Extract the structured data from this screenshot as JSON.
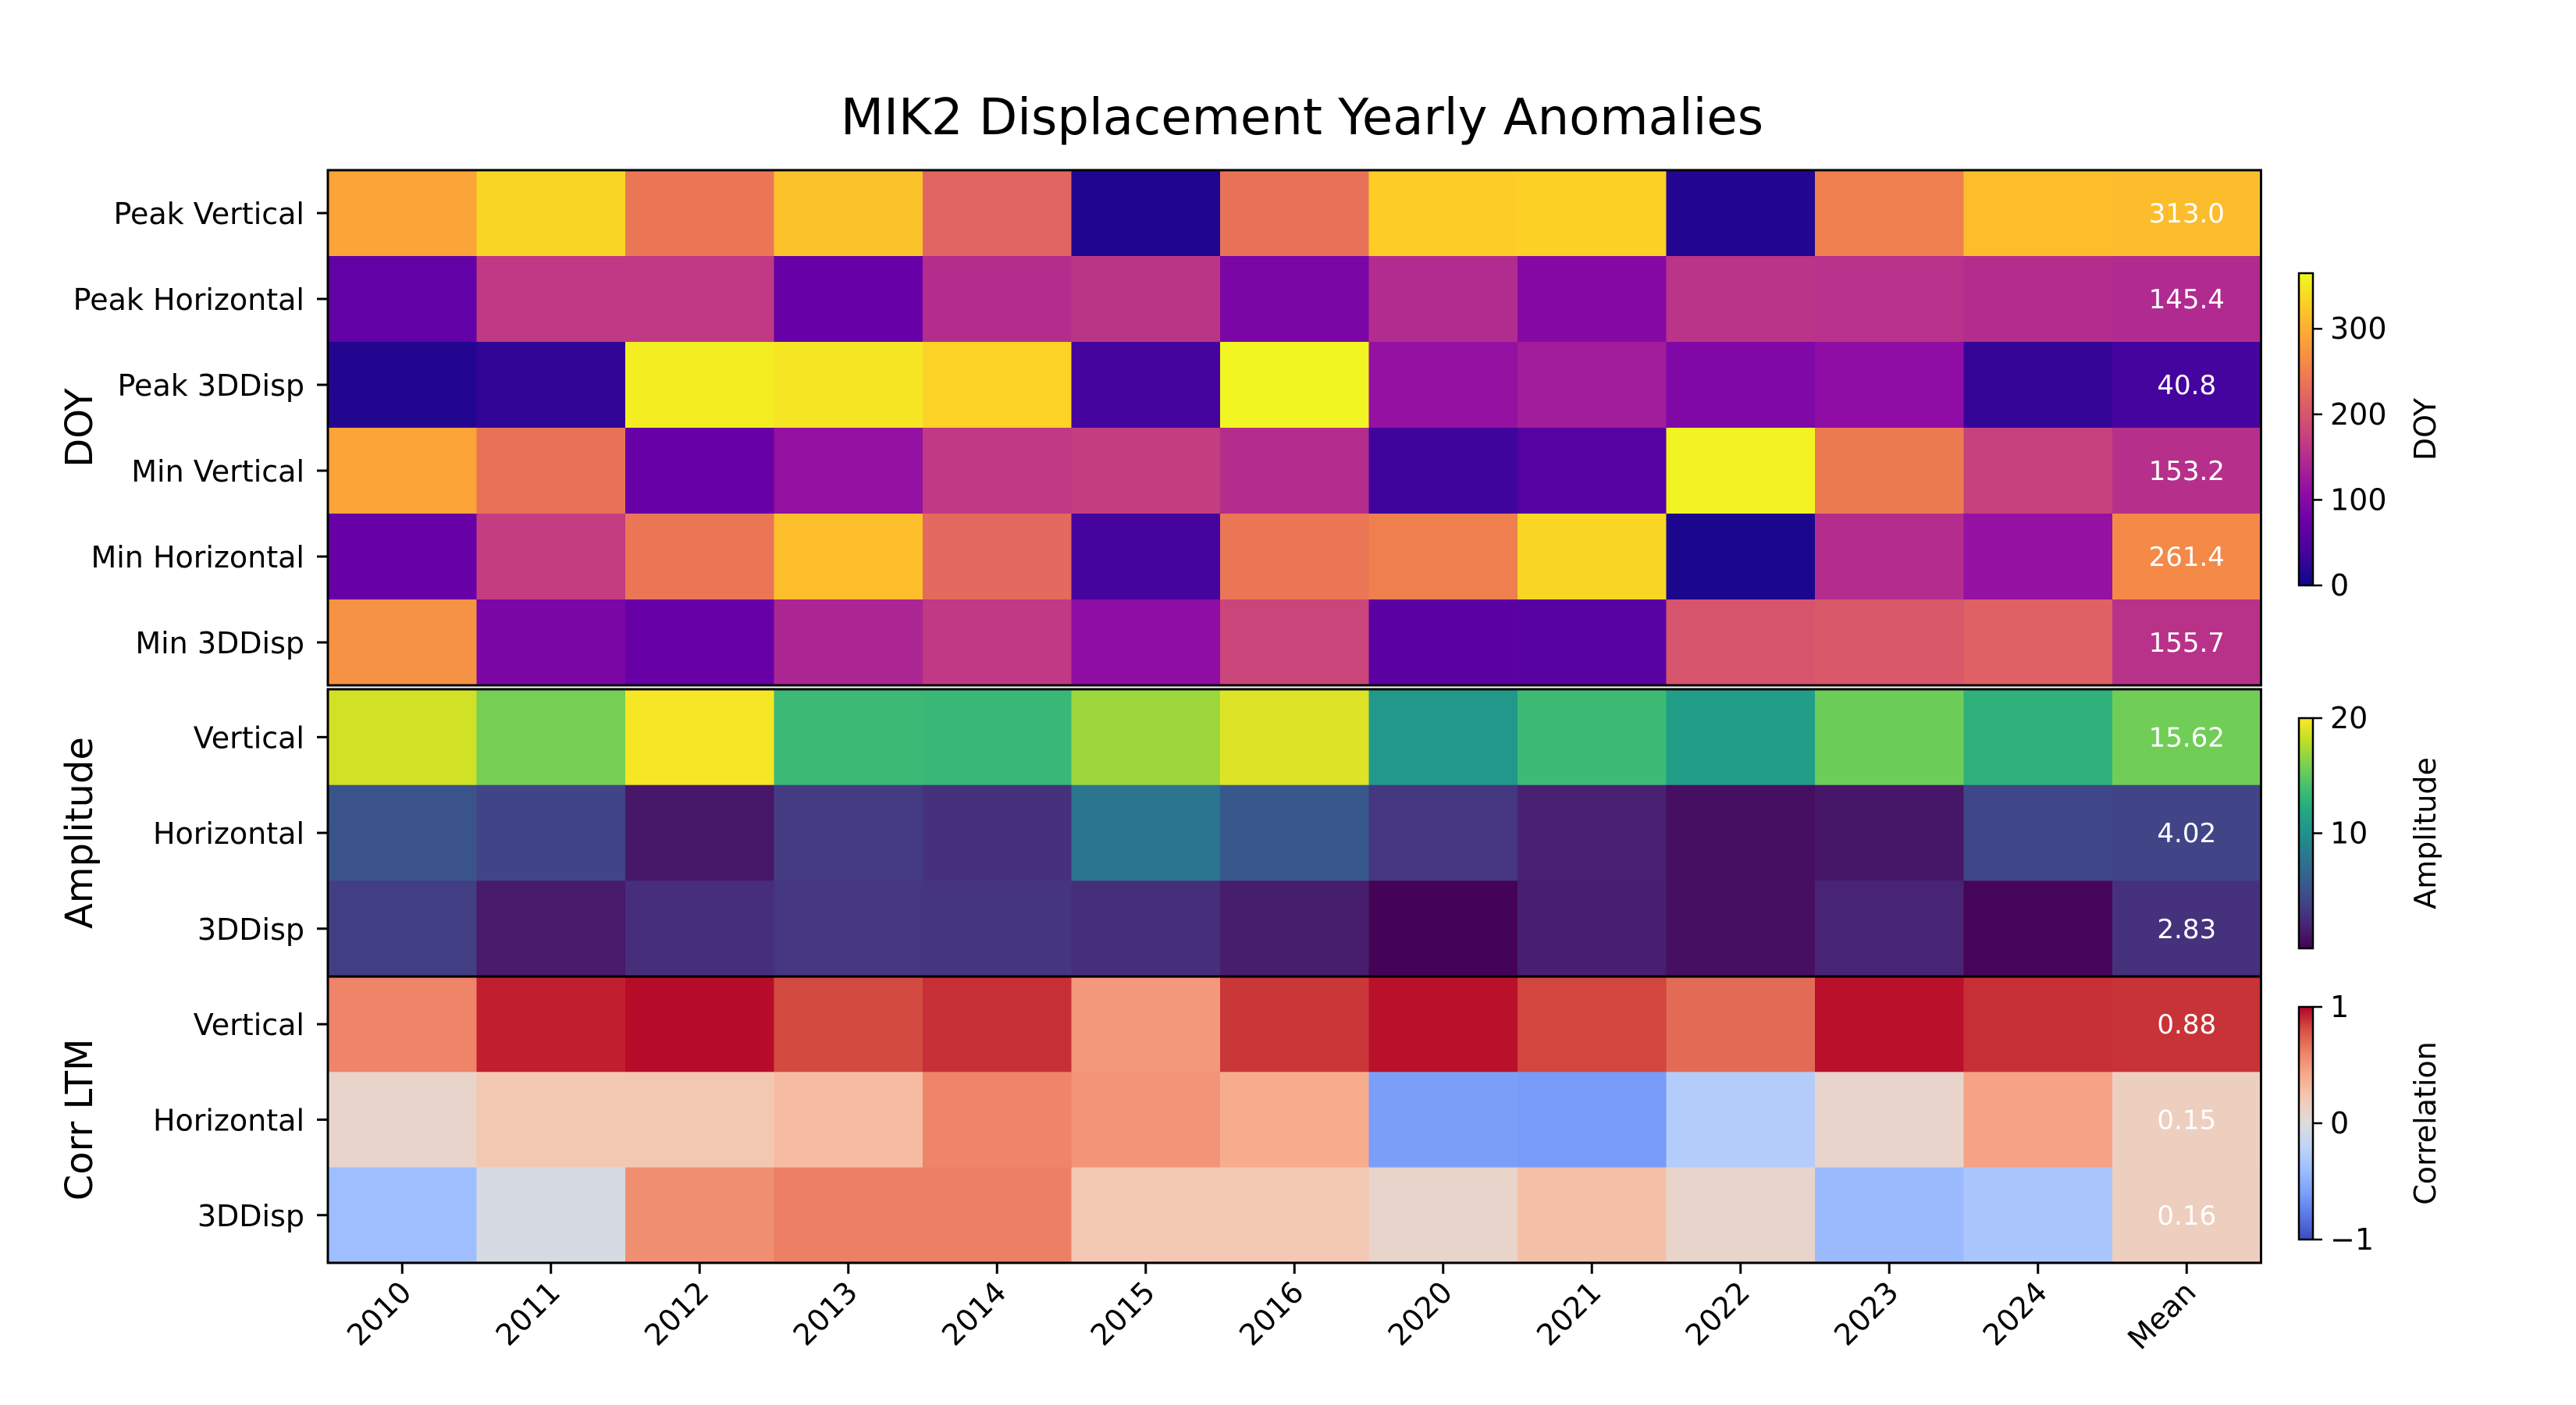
{
  "chart_data": {
    "type": "heatmap",
    "title": "MIK2 Displacement Yearly Anomalies",
    "columns": [
      "2010",
      "2011",
      "2012",
      "2013",
      "2014",
      "2015",
      "2016",
      "2020",
      "2021",
      "2022",
      "2023",
      "2024",
      "Mean"
    ],
    "groups": [
      {
        "id": "doy",
        "label": "DOY",
        "colormap": "plasma",
        "range": [
          0,
          365
        ],
        "colorbar": {
          "label": "DOY",
          "ticks": [
            "0",
            "100",
            "200",
            "300"
          ],
          "tick_values": [
            0,
            100,
            200,
            300
          ]
        },
        "mean_labels": [
          "313.0",
          "145.4",
          "40.8",
          "153.2",
          "261.4",
          "155.7"
        ],
        "rows": [
          {
            "label": "Peak Vertical",
            "values": [
              290,
              335,
              240,
              318,
              220,
              12,
              235,
              328,
              330,
              15,
              250,
              315,
              313.0
            ]
          },
          {
            "label": "Peak Horizontal",
            "values": [
              65,
              165,
              165,
              70,
              150,
              160,
              90,
              148,
              100,
              158,
              155,
              150,
              145.4
            ]
          },
          {
            "label": "Peak 3DDisp",
            "values": [
              15,
              25,
              355,
              348,
              332,
              40,
              362,
              115,
              130,
              95,
              110,
              28,
              40.8
            ]
          },
          {
            "label": "Min Vertical",
            "values": [
              290,
              235,
              70,
              115,
              165,
              170,
              150,
              35,
              55,
              360,
              245,
              175,
              153.2
            ]
          },
          {
            "label": "Min Horizontal",
            "values": [
              70,
              170,
              240,
              315,
              225,
              40,
              240,
              250,
              335,
              10,
              150,
              115,
              261.4
            ]
          },
          {
            "label": "Min 3DDisp",
            "values": [
              270,
              90,
              70,
              140,
              165,
              110,
              180,
              60,
              58,
              200,
              205,
              215,
              155.7
            ]
          }
        ]
      },
      {
        "id": "amplitude",
        "label": "Amplitude",
        "colormap": "viridis",
        "range": [
          0,
          20
        ],
        "colorbar": {
          "label": "Amplitude",
          "ticks": [
            "10",
            "20"
          ],
          "tick_values": [
            10,
            20
          ]
        },
        "mean_labels": [
          "15.62",
          "4.02",
          "2.83"
        ],
        "rows": [
          {
            "label": "Vertical",
            "values": [
              18.6,
              15.8,
              19.8,
              13.5,
              13.3,
              17.0,
              19.0,
              10.6,
              13.6,
              11.0,
              15.5,
              12.8,
              15.62
            ]
          },
          {
            "label": "Horizontal",
            "values": [
              5.1,
              4.0,
              1.3,
              3.5,
              2.8,
              7.8,
              5.5,
              3.1,
              1.8,
              0.8,
              1.2,
              4.2,
              4.02
            ]
          },
          {
            "label": "3DDisp",
            "values": [
              3.6,
              1.4,
              2.6,
              3.2,
              3.0,
              2.6,
              1.6,
              0.1,
              1.7,
              0.8,
              2.0,
              0.3,
              2.83
            ]
          }
        ]
      },
      {
        "id": "corr",
        "label": "Corr LTM",
        "colormap": "coolwarm",
        "range": [
          -1,
          1
        ],
        "colorbar": {
          "label": "Correlation",
          "ticks": [
            "−1",
            "0",
            "1"
          ],
          "tick_values": [
            -1,
            0,
            1
          ]
        },
        "mean_labels": [
          "0.88",
          "0.15",
          "0.16"
        ],
        "rows": [
          {
            "label": "Vertical",
            "values": [
              0.6,
              0.93,
              0.98,
              0.82,
              0.89,
              0.5,
              0.87,
              0.97,
              0.83,
              0.7,
              0.97,
              0.89,
              0.88
            ]
          },
          {
            "label": "Horizontal",
            "values": [
              0.1,
              0.22,
              0.22,
              0.3,
              0.6,
              0.52,
              0.4,
              -0.6,
              -0.62,
              -0.27,
              0.1,
              0.45,
              0.15
            ]
          },
          {
            "label": "3DDisp",
            "values": [
              -0.4,
              -0.05,
              0.55,
              0.62,
              0.62,
              0.22,
              0.22,
              0.1,
              0.28,
              0.1,
              -0.42,
              -0.33,
              0.16
            ]
          }
        ]
      }
    ]
  }
}
